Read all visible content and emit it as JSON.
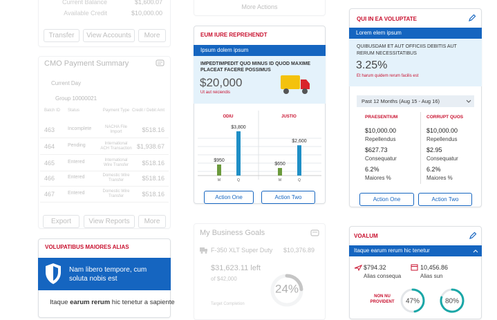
{
  "left": {
    "top_card": {
      "current_balance_label": "Current Balance",
      "current_balance": "$1,600.07",
      "available_credit_label": "Available Credit",
      "available_credit": "$10,000.00",
      "buttons": [
        "Transfer",
        "View Accounts",
        "More"
      ]
    },
    "payment_summary": {
      "title": "CMO Payment Summary",
      "filter": "Current Day",
      "group": "Group 10000021",
      "columns": [
        "Batch ID",
        "Status",
        "Payment Type",
        "Credit / Debit Amt"
      ],
      "rows": [
        [
          "463",
          "Incomplete",
          "NACHA File Import",
          "$518.16"
        ],
        [
          "464",
          "Pending",
          "International ACH Transaction",
          "$1,938.67"
        ],
        [
          "465",
          "Entered",
          "International Wire Transfer",
          "$518.16"
        ],
        [
          "466",
          "Entered",
          "Domestic Wire Transfer",
          "$518.16"
        ],
        [
          "467",
          "Entered",
          "Domestic Wire Transfer",
          "$518.16"
        ]
      ],
      "buttons": [
        "Export",
        "View Reports",
        "More"
      ]
    },
    "alert_card": {
      "title": "VOLUPATIBUS MAIORES ALIAS",
      "banner": "Nam libero tempore, cum soluta nobis est",
      "body": [
        "Itaque ",
        "earum rerum",
        " hic tenetur a sapiente"
      ]
    }
  },
  "middle": {
    "top_card": {
      "button": "More Actions"
    },
    "chart_card": {
      "title": "EUM IURE REPREHENDT",
      "band": "Ipsum dolem ipsum",
      "headline": "IMPEDTIMPEDIT QUO MINUS ID QUOD MAXIME PLACEAT FACERE POSSIMUS",
      "amount": "$20,000",
      "note": "Ut aut reiciendis",
      "buttons": [
        "Action One",
        "Action Two"
      ]
    },
    "goals": {
      "title": "My Business Goals",
      "item": "F-350 XLT Super Duty",
      "target": "$10,376.89",
      "left": "$31,623.11 left",
      "of": "of $42,000",
      "completion": "Target Completion",
      "progress": {
        "value": 24,
        "label": "24%"
      }
    }
  },
  "chart_data": {
    "type": "bar",
    "categories": [
      "ODIU",
      "JUSTIO"
    ],
    "series": [
      {
        "name": "M",
        "color": "#6b9a3c",
        "values": [
          950,
          650
        ],
        "value_labels": [
          "$950",
          "$650"
        ]
      },
      {
        "name": "Q",
        "color": "#1f8fc6",
        "values": [
          3800,
          2600
        ],
        "value_labels": [
          "$3,800",
          "$2,600"
        ]
      }
    ]
  },
  "right": {
    "rate_card": {
      "title": "QUI IN EA VOLUPTATE",
      "band": "Lorem elem ipsum",
      "headline": "QUIBUSDAM ET AUT OFFICIIS DEBITIS AUT RERUM NECESSITATIBUS",
      "rate": "3.25%",
      "note": "Et harum quidem rerum facilis est",
      "period": "Past 12 Months (Aug 15 - Aug 16)",
      "columns": [
        {
          "title": "PRAESENTIUM",
          "items": [
            [
              "$10,000.00",
              "Repellendus"
            ],
            [
              "$627.73",
              "Consequatur"
            ],
            [
              "6.2%",
              "Maiores %"
            ]
          ]
        },
        {
          "title": "CORRUPT QUOS",
          "items": [
            [
              "$10,000.00",
              "Repellendus"
            ],
            [
              "$2.95",
              "Consequatur"
            ],
            [
              "6.2%",
              "Maiores %"
            ]
          ]
        }
      ],
      "buttons": [
        "Action One",
        "Action Two"
      ]
    },
    "voalum": {
      "title": "VOALUM",
      "band": "Itaque earum rerum hic tenetur",
      "stats": [
        [
          "$794.32",
          "Alias consequa"
        ],
        [
          "10,456.86",
          "Alias sun"
        ]
      ],
      "provident": "NON NU PROVIDENT",
      "progress": [
        {
          "value": 47,
          "label": "47%"
        },
        {
          "value": 80,
          "label": "80%"
        }
      ]
    }
  }
}
